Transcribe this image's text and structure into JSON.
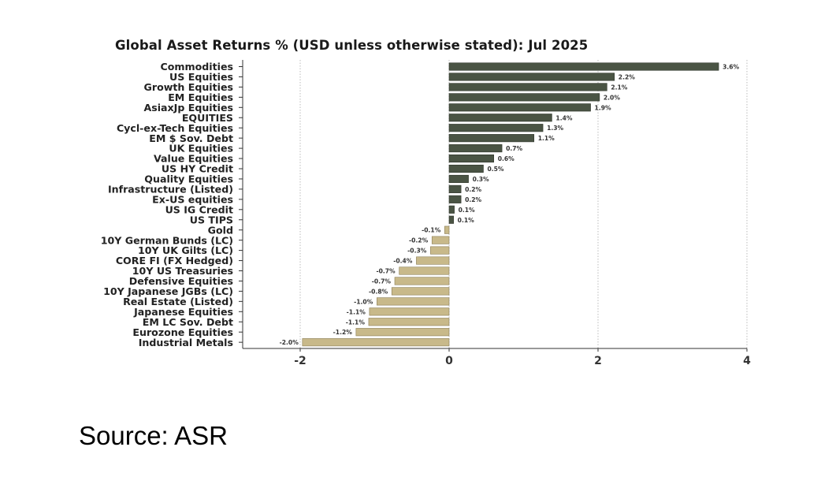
{
  "source_label": "Source: ASR",
  "colors": {
    "positive": "#4a5444",
    "negative": "#c8b98a",
    "axis": "#333333",
    "grid": "#bbbbbb"
  },
  "chart_data": {
    "type": "bar",
    "orientation": "horizontal",
    "title": "Global Asset Returns % (USD unless otherwise stated): Jul 2025",
    "xlabel": "",
    "ylabel": "",
    "xlim": [
      -2.8,
      4.0
    ],
    "xticks": [
      -2,
      0,
      2,
      4
    ],
    "xtick_labels": [
      "-2",
      "0",
      "2",
      "4"
    ],
    "grid": "vertical dotted",
    "categories": [
      "Commodities",
      "US Equities",
      "Growth Equities",
      "EM Equities",
      "AsiaxJp Equities",
      "EQUITIES",
      "Cycl-ex-Tech Equities",
      "EM $ Sov. Debt",
      "UK Equities",
      "Value Equities",
      "US HY Credit",
      "Quality Equities",
      "Infrastructure (Listed)",
      "Ex-US equities",
      "US IG Credit",
      "US TIPS",
      "Gold",
      "10Y German Bunds (LC)",
      "10Y UK Gilts (LC)",
      "CORE FI (FX Hedged)",
      "10Y US Treasuries",
      "Defensive Equities",
      "10Y Japanese JGBs (LC)",
      "Real Estate (Listed)",
      "Japanese Equities",
      "EM LC Sov. Debt",
      "Eurozone Equities",
      "Industrial Metals"
    ],
    "values": [
      3.62,
      2.22,
      2.12,
      2.02,
      1.9,
      1.38,
      1.26,
      1.14,
      0.71,
      0.6,
      0.46,
      0.26,
      0.16,
      0.16,
      0.07,
      0.06,
      -0.06,
      -0.23,
      -0.25,
      -0.44,
      -0.67,
      -0.73,
      -0.77,
      -0.97,
      -1.07,
      -1.08,
      -1.25,
      -1.97
    ],
    "value_labels": [
      "3.6%",
      "2.2%",
      "2.1%",
      "2.0%",
      "1.9%",
      "1.4%",
      "1.3%",
      "1.1%",
      "0.7%",
      "0.6%",
      "0.5%",
      "0.3%",
      "0.2%",
      "0.2%",
      "0.1%",
      "0.1%",
      "-0.1%",
      "-0.2%",
      "-0.3%",
      "-0.4%",
      "-0.7%",
      "-0.7%",
      "-0.8%",
      "-1.0%",
      "-1.1%",
      "-1.1%",
      "-1.2%",
      "-2.0%"
    ]
  }
}
